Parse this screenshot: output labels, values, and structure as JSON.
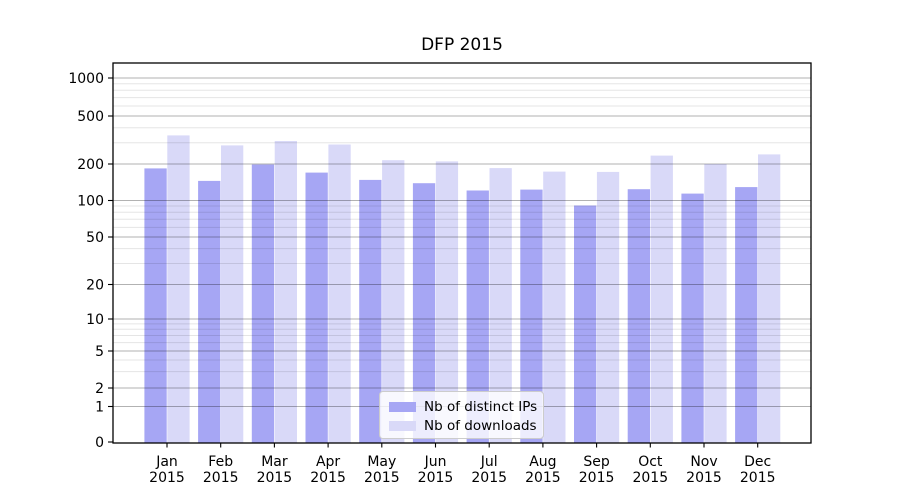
{
  "chart_data": {
    "type": "bar",
    "title": "DFP 2015",
    "categories": [
      "Jan",
      "Feb",
      "Mar",
      "Apr",
      "May",
      "Jun",
      "Jul",
      "Aug",
      "Sep",
      "Oct",
      "Nov",
      "Dec"
    ],
    "category_year": "2015",
    "series": [
      {
        "name": "Nb of distinct IPs",
        "color": "#a6a6f4",
        "values": [
          184,
          145,
          198,
          170,
          148,
          139,
          121,
          123,
          91,
          124,
          114,
          129
        ]
      },
      {
        "name": "Nb of downloads",
        "color": "#d9d9f8",
        "values": [
          345,
          285,
          310,
          290,
          215,
          210,
          185,
          173,
          172,
          235,
          200,
          240
        ]
      }
    ],
    "yscale": "symlog",
    "ytick_labels": [
      "0",
      "1",
      "2",
      "5",
      "10",
      "20",
      "50",
      "100",
      "200",
      "500",
      "1000"
    ],
    "ytick_values": [
      0,
      1,
      2,
      5,
      10,
      20,
      50,
      100,
      200,
      500,
      1000
    ],
    "ylim": [
      0,
      1400
    ],
    "xlabel": "",
    "ylabel": "",
    "grid": true,
    "legend_position": "lower center"
  }
}
